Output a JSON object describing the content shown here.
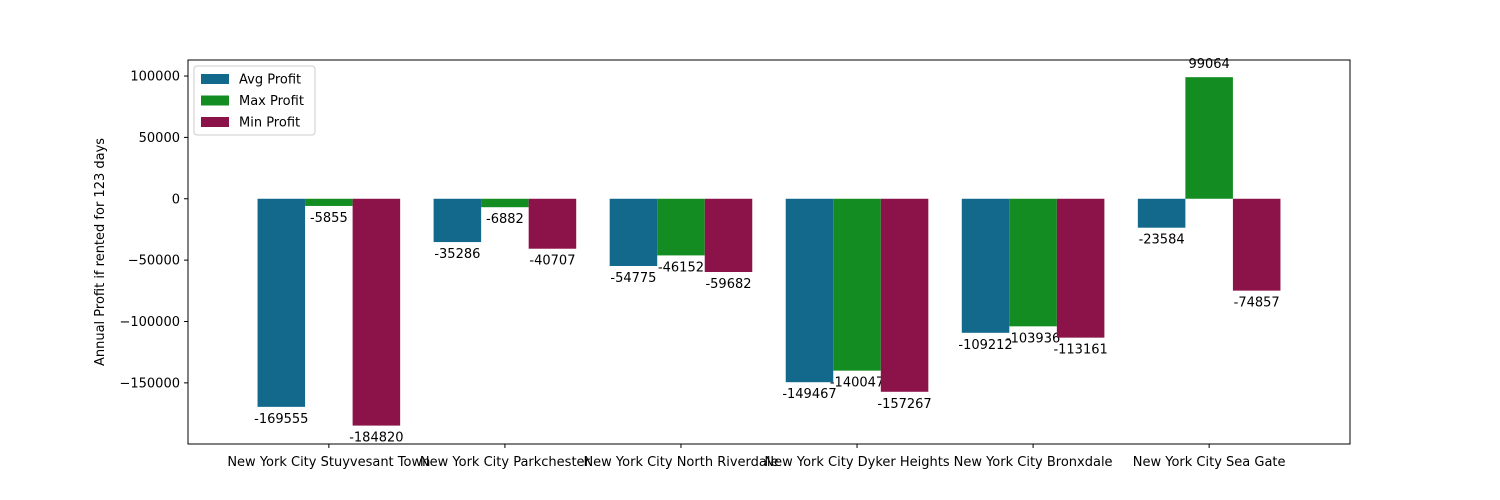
{
  "chart_data": {
    "type": "bar",
    "title": "",
    "xlabel": "",
    "ylabel": "Annual Profit if rented for 123 days",
    "categories": [
      "New York City Stuyvesant Town",
      "New York City Parkchester",
      "New York City North Riverdale",
      "New York City Dyker Heights",
      "New York City Bronxdale",
      "New York City Sea Gate"
    ],
    "series": [
      {
        "name": "Avg Profit",
        "color": "#13698c",
        "values": [
          -169555,
          -35286,
          -54775,
          -149467,
          -109212,
          -23584
        ]
      },
      {
        "name": "Max Profit",
        "color": "#138c22",
        "values": [
          -5855,
          -6882,
          -46152,
          -140047,
          -103936,
          99064
        ]
      },
      {
        "name": "Min Profit",
        "color": "#8c134a",
        "values": [
          -184820,
          -40707,
          -59682,
          -157267,
          -113161,
          -74857
        ]
      }
    ],
    "ylim": [
      -199814,
      113058
    ],
    "yticks": [
      -150000,
      -100000,
      -50000,
      0,
      50000,
      100000
    ],
    "ytick_labels": [
      "−150000",
      "−100000",
      "−50000",
      "0",
      "50000",
      "100000"
    ],
    "legend_position": "upper-left",
    "grid": false
  }
}
